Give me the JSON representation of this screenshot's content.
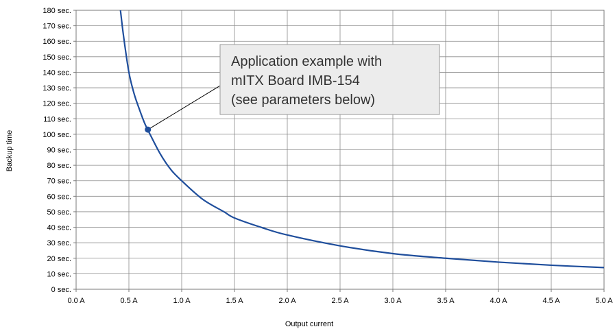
{
  "chart_data": {
    "type": "line",
    "xlabel": "Output current",
    "ylabel": "Backup time",
    "xlim": [
      0,
      5
    ],
    "ylim": [
      0,
      180
    ],
    "x_ticks": [
      0,
      0.5,
      1,
      1.5,
      2,
      2.5,
      3,
      3.5,
      4,
      4.5,
      5
    ],
    "x_tick_labels": [
      "0.0 A",
      "0.5 A",
      "1.0 A",
      "1.5 A",
      "2.0 A",
      "2.5 A",
      "3.0 A",
      "3.5 A",
      "4.0 A",
      "4.5 A",
      "5.0 A"
    ],
    "y_ticks": [
      0,
      10,
      20,
      30,
      40,
      50,
      60,
      70,
      80,
      90,
      100,
      110,
      120,
      130,
      140,
      150,
      160,
      170,
      180
    ],
    "y_tick_labels": [
      "0 sec.",
      "10 sec.",
      "20 sec.",
      "30 sec.",
      "40 sec.",
      "50 sec.",
      "60 sec.",
      "70 sec.",
      "80 sec.",
      "90 sec.",
      "100 sec.",
      "110 sec.",
      "120 sec.",
      "130 sec.",
      "140 sec.",
      "150 sec.",
      "160 sec.",
      "170 sec.",
      "180 sec."
    ],
    "grid": true,
    "series": [
      {
        "color": "#1f4e9c",
        "x": [
          0.42,
          0.45,
          0.5,
          0.55,
          0.6,
          0.65,
          0.7,
          0.8,
          0.9,
          1.0,
          1.2,
          1.4,
          1.5,
          1.75,
          2.0,
          2.5,
          3.0,
          3.5,
          4.0,
          4.5,
          5.0
        ],
        "y": [
          180,
          163,
          140,
          126,
          116,
          107,
          100,
          87,
          77,
          70,
          58,
          50,
          46,
          40,
          35,
          28,
          23,
          20,
          17.5,
          15.5,
          14
        ]
      }
    ],
    "marker": {
      "x": 0.68,
      "y": 103
    },
    "annotation": {
      "lines": [
        "Application example with",
        "mITX Board IMB-154",
        "(see parameters below)"
      ]
    }
  }
}
